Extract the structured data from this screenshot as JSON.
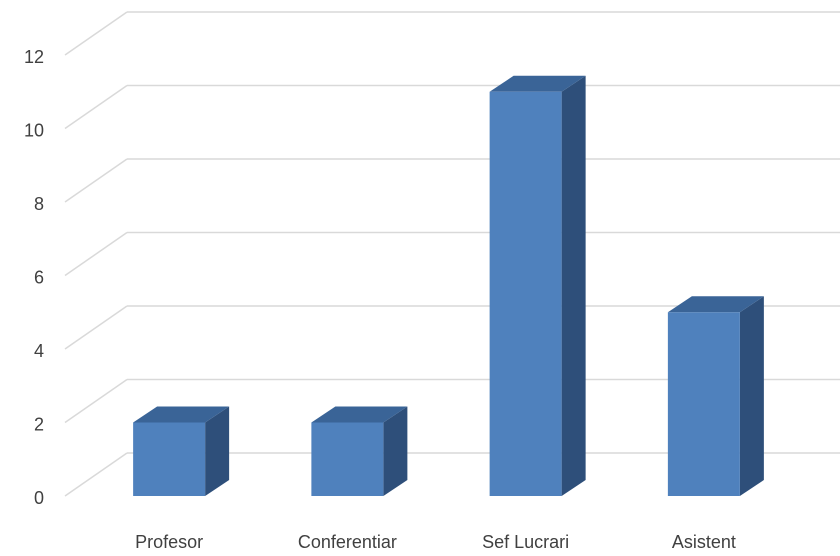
{
  "chart_data": {
    "type": "bar",
    "style": "3d-column",
    "title": "",
    "xlabel": "",
    "ylabel": "",
    "categories": [
      "Profesor",
      "Conferentiar",
      "Sef Lucrari",
      "Asistent"
    ],
    "series": [
      {
        "values": [
          2,
          2,
          11,
          5
        ]
      }
    ],
    "ylim": [
      0,
      12
    ],
    "yticks": [
      "0",
      "2",
      "4",
      "6",
      "8",
      "10",
      "12"
    ],
    "grid": true,
    "legend": "none",
    "colors": {
      "bar_front": "#4f81bd",
      "bar_top": "#3a6497",
      "bar_side": "#2e4f7a",
      "grid": "#d9d9d9",
      "text": "#404040"
    }
  }
}
